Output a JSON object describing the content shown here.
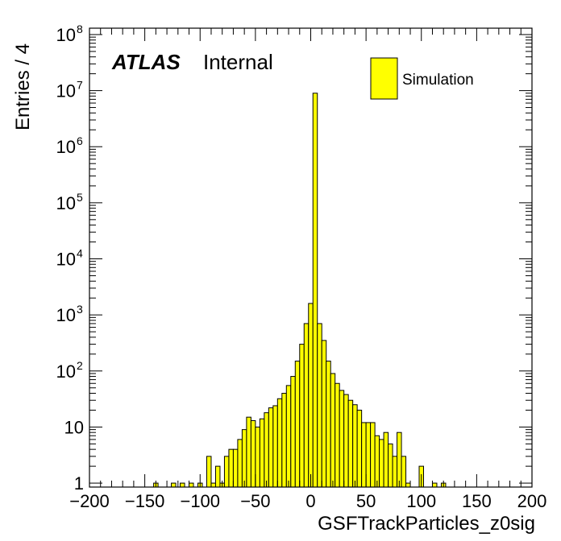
{
  "chart_data": {
    "type": "histogram",
    "xlabel": "GSFTrackParticles_z0sig",
    "ylabel": "Entries / 4",
    "xlim": [
      -200,
      200
    ],
    "ylim": [
      0.85,
      130000000
    ],
    "yscale": "log",
    "x_ticks": [
      "−200",
      "−150",
      "−100",
      "−50",
      "0",
      "50",
      "100",
      "150",
      "200"
    ],
    "y_ticks": [
      {
        "base": "1",
        "exp": ""
      },
      {
        "base": "10",
        "exp": ""
      },
      {
        "base": "10",
        "exp": "2"
      },
      {
        "base": "10",
        "exp": "3"
      },
      {
        "base": "10",
        "exp": "4"
      },
      {
        "base": "10",
        "exp": "5"
      },
      {
        "base": "10",
        "exp": "6"
      },
      {
        "base": "10",
        "exp": "7"
      },
      {
        "base": "10",
        "exp": "8"
      }
    ],
    "bin_width": 4,
    "fill_color": "#ffff00",
    "line_color": "#000000",
    "series": [
      {
        "name": "Simulation",
        "bins": [
          {
            "x": -140,
            "y": 1
          },
          {
            "x": -124,
            "y": 1
          },
          {
            "x": -116,
            "y": 1
          },
          {
            "x": -108,
            "y": 1
          },
          {
            "x": -100,
            "y": 1
          },
          {
            "x": -92,
            "y": 3
          },
          {
            "x": -88,
            "y": 1
          },
          {
            "x": -84,
            "y": 2
          },
          {
            "x": -80,
            "y": 1
          },
          {
            "x": -76,
            "y": 3
          },
          {
            "x": -72,
            "y": 4
          },
          {
            "x": -68,
            "y": 4
          },
          {
            "x": -64,
            "y": 6
          },
          {
            "x": -60,
            "y": 9
          },
          {
            "x": -56,
            "y": 15
          },
          {
            "x": -52,
            "y": 13
          },
          {
            "x": -48,
            "y": 10
          },
          {
            "x": -44,
            "y": 14
          },
          {
            "x": -40,
            "y": 18
          },
          {
            "x": -36,
            "y": 22
          },
          {
            "x": -32,
            "y": 24
          },
          {
            "x": -28,
            "y": 32
          },
          {
            "x": -24,
            "y": 40
          },
          {
            "x": -20,
            "y": 55
          },
          {
            "x": -16,
            "y": 80
          },
          {
            "x": -12,
            "y": 150
          },
          {
            "x": -8,
            "y": 300
          },
          {
            "x": -4,
            "y": 700
          },
          {
            "x": 0,
            "y": 1600
          },
          {
            "x": 4,
            "y": 9000000
          },
          {
            "x": 8,
            "y": 700
          },
          {
            "x": 12,
            "y": 350
          },
          {
            "x": 16,
            "y": 150
          },
          {
            "x": 20,
            "y": 90
          },
          {
            "x": 24,
            "y": 60
          },
          {
            "x": 28,
            "y": 45
          },
          {
            "x": 32,
            "y": 38
          },
          {
            "x": 36,
            "y": 30
          },
          {
            "x": 40,
            "y": 25
          },
          {
            "x": 44,
            "y": 20
          },
          {
            "x": 48,
            "y": 12
          },
          {
            "x": 52,
            "y": 12
          },
          {
            "x": 56,
            "y": 12
          },
          {
            "x": 60,
            "y": 7
          },
          {
            "x": 64,
            "y": 6
          },
          {
            "x": 68,
            "y": 8
          },
          {
            "x": 72,
            "y": 5
          },
          {
            "x": 76,
            "y": 3
          },
          {
            "x": 80,
            "y": 8
          },
          {
            "x": 84,
            "y": 3
          },
          {
            "x": 88,
            "y": 1
          },
          {
            "x": 100,
            "y": 2
          },
          {
            "x": 112,
            "y": 1
          },
          {
            "x": 120,
            "y": 1
          }
        ]
      }
    ]
  },
  "labels": {
    "atlas": "ATLAS",
    "internal": "Internal"
  },
  "legend": {
    "entries": [
      {
        "label": "Simulation",
        "color": "#ffff00"
      }
    ]
  }
}
